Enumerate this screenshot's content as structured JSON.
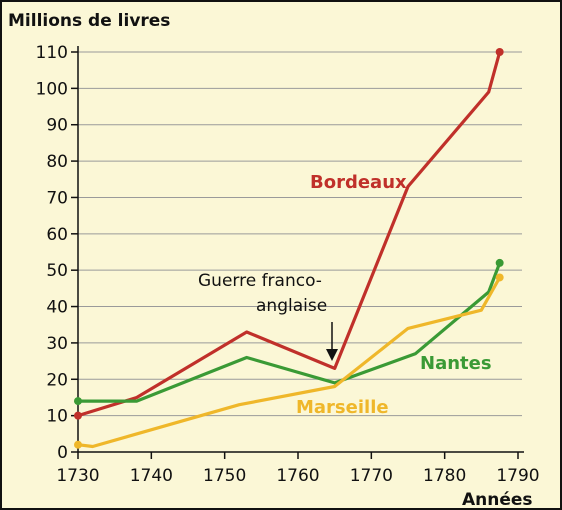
{
  "chart_data": {
    "type": "line",
    "ylabel": "Millions de livres",
    "xlabel": "Années",
    "xlim": [
      1730,
      1790
    ],
    "ylim": [
      0,
      110
    ],
    "xticks": [
      1730,
      1740,
      1750,
      1760,
      1770,
      1780,
      1790
    ],
    "yticks": [
      0,
      10,
      20,
      30,
      40,
      50,
      60,
      70,
      80,
      90,
      100,
      110
    ],
    "grid": true,
    "annotation": {
      "text_lines": [
        "Guerre franco-",
        "anglaise"
      ],
      "x": 1765,
      "y": 23
    },
    "series": [
      {
        "name": "Bordeaux",
        "color": "#c0302a",
        "points": [
          [
            1730,
            10
          ],
          [
            1738,
            15
          ],
          [
            1753,
            33
          ],
          [
            1765,
            23
          ],
          [
            1775,
            73
          ],
          [
            1786,
            99
          ],
          [
            1787.5,
            110
          ]
        ]
      },
      {
        "name": "Nantes",
        "color": "#3a9a35",
        "points": [
          [
            1730,
            14
          ],
          [
            1738,
            14
          ],
          [
            1753,
            26
          ],
          [
            1765,
            19
          ],
          [
            1776,
            27
          ],
          [
            1786,
            44
          ],
          [
            1787.5,
            52
          ]
        ]
      },
      {
        "name": "Marseille",
        "color": "#efb72a",
        "points": [
          [
            1730,
            2
          ],
          [
            1732,
            1.5
          ],
          [
            1752,
            13
          ],
          [
            1765,
            18
          ],
          [
            1775,
            34
          ],
          [
            1785,
            39
          ],
          [
            1787.5,
            48
          ]
        ]
      }
    ],
    "end_markers": true
  }
}
